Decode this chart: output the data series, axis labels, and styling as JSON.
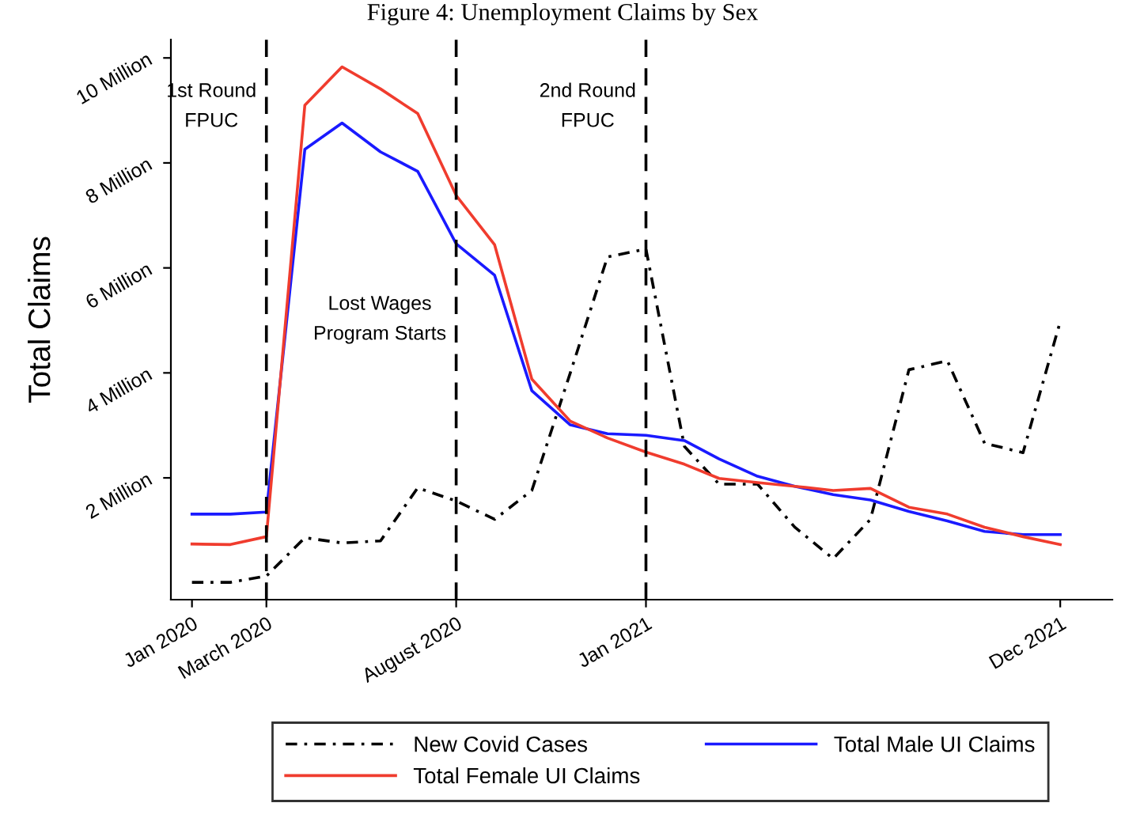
{
  "chart_data": {
    "type": "line",
    "title": "Figure 4: Unemployment Claims by Sex",
    "ylabel": "Total Claims",
    "x": [
      "2020-01",
      "2020-02",
      "2020-03",
      "2020-04",
      "2020-05",
      "2020-06",
      "2020-07",
      "2020-08",
      "2020-09",
      "2020-10",
      "2020-11",
      "2020-12",
      "2021-01",
      "2021-02",
      "2021-03",
      "2021-04",
      "2021-05",
      "2021-06",
      "2021-07",
      "2021-08",
      "2021-09",
      "2021-10",
      "2021-11",
      "2021-12"
    ],
    "series": [
      {
        "name": "New Covid Cases",
        "color": "#000000",
        "line_style": "dashdot",
        "values": [
          0.01,
          0.01,
          0.13,
          0.86,
          0.76,
          0.8,
          1.81,
          1.56,
          1.21,
          1.76,
          4.0,
          6.21,
          6.36,
          2.6,
          1.88,
          1.88,
          1.06,
          0.46,
          1.21,
          4.06,
          4.23,
          2.66,
          2.48,
          4.98
        ]
      },
      {
        "name": "Total Male UI Claims",
        "color": "#1a1aff",
        "values": [
          1.31,
          1.31,
          1.35,
          8.26,
          8.76,
          8.21,
          7.84,
          6.46,
          5.86,
          3.66,
          3.01,
          2.84,
          2.81,
          2.71,
          2.36,
          2.03,
          1.84,
          1.68,
          1.58,
          1.36,
          1.18,
          0.98,
          0.92,
          0.92
        ]
      },
      {
        "name": "Total Female UI Claims",
        "color": "#f03c2e",
        "values": [
          0.74,
          0.73,
          0.88,
          9.1,
          9.83,
          9.41,
          8.94,
          7.38,
          6.44,
          3.88,
          3.08,
          2.76,
          2.49,
          2.26,
          1.99,
          1.91,
          1.84,
          1.76,
          1.8,
          1.44,
          1.31,
          1.06,
          0.88,
          0.73
        ]
      }
    ],
    "xlim": [
      "2019-12-15",
      "2022-01-12"
    ],
    "xticks": [
      {
        "value": "2020-01",
        "label": "Jan 2020"
      },
      {
        "value": "2020-03",
        "label": "March 2020"
      },
      {
        "value": "2020-08",
        "label": "August 2020"
      },
      {
        "value": "2021-01",
        "label": "Jan 2021"
      },
      {
        "value": "2021-12",
        "label": "Dec 2021"
      }
    ],
    "ylim": [
      -0.32,
      10.35
    ],
    "yticks": [
      {
        "value": 2,
        "label": "2 Million"
      },
      {
        "value": 4,
        "label": "4 Million"
      },
      {
        "value": 6,
        "label": "6 Million"
      },
      {
        "value": 8,
        "label": "8 Million"
      },
      {
        "value": 10,
        "label": "10 Million"
      }
    ],
    "ref_lines": [
      {
        "axis": "x",
        "value": "2020-03",
        "label": "1st Round\nFPUC",
        "color": "#000000",
        "line_style": "dashed"
      },
      {
        "axis": "x",
        "value": "2020-08",
        "label": "Lost Wages\nProgram Starts",
        "color": "#000000",
        "line_style": "dashed"
      },
      {
        "axis": "x",
        "value": "2021-01",
        "label": "2nd Round\nFPUC",
        "color": "#000000",
        "line_style": "dashed"
      }
    ],
    "grid": false,
    "legend": "bottom"
  }
}
